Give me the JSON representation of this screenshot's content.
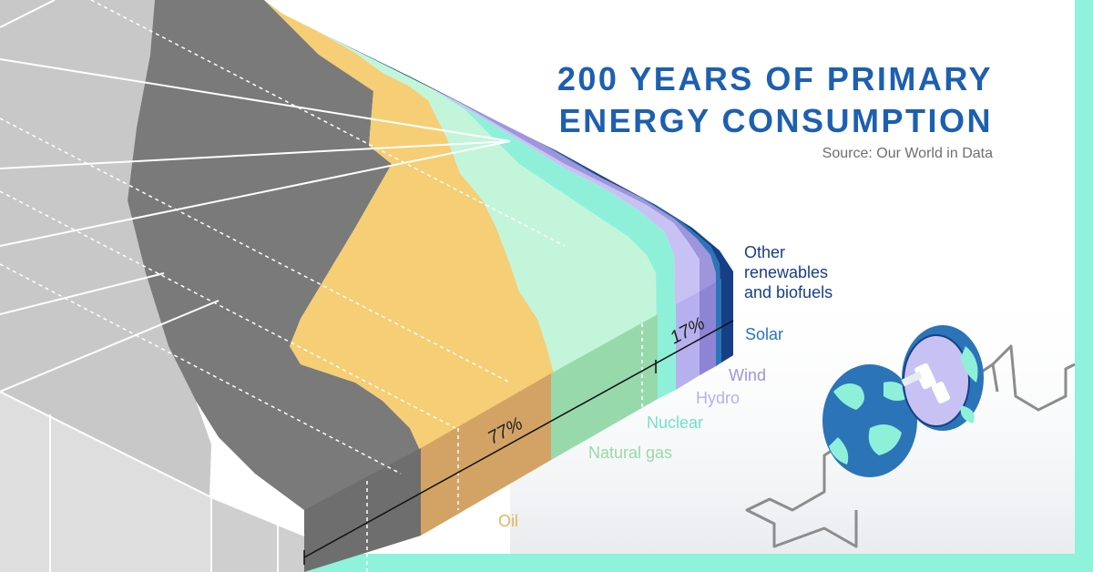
{
  "title_line1": "200 YEARS OF PRIMARY",
  "title_line2": "ENERGY CONSUMPTION",
  "source": "Source: Our World in Data",
  "colors": {
    "traditional_biomass": "#c8c8c8",
    "coal": "#7a7a7a",
    "oil": "#f6ce75",
    "natural_gas": "#c3f5db",
    "nuclear": "#8ff0da",
    "hydro": "#c8c2f4",
    "wind": "#9e95dd",
    "solar": "#2c74b8",
    "other_renewables": "#173f86",
    "frame": "#8ff2da"
  },
  "chart_data": {
    "type": "area",
    "title": "200 YEARS OF PRIMARY ENERGY CONSUMPTION",
    "subtitle": "Source: Our World in Data",
    "series": [
      {
        "name": "Oil"
      },
      {
        "name": "Natural gas"
      },
      {
        "name": "Nuclear"
      },
      {
        "name": "Hydro"
      },
      {
        "name": "Wind"
      },
      {
        "name": "Solar"
      },
      {
        "name": "Other renewables and biofuels"
      }
    ],
    "annotations": [
      {
        "text": "77%"
      },
      {
        "text": "17%"
      }
    ]
  },
  "labels": {
    "oil": "Oil",
    "natural_gas": "Natural gas",
    "nuclear": "Nuclear",
    "hydro": "Hydro",
    "wind": "Wind",
    "solar": "Solar",
    "other_line1": "Other",
    "other_line2": "renewables",
    "other_line3": "and biofuels"
  },
  "annotations": {
    "fossil_share": "77%",
    "low_carbon_share": "17%"
  },
  "illustration": {
    "icon": "globe-plug-icon"
  }
}
